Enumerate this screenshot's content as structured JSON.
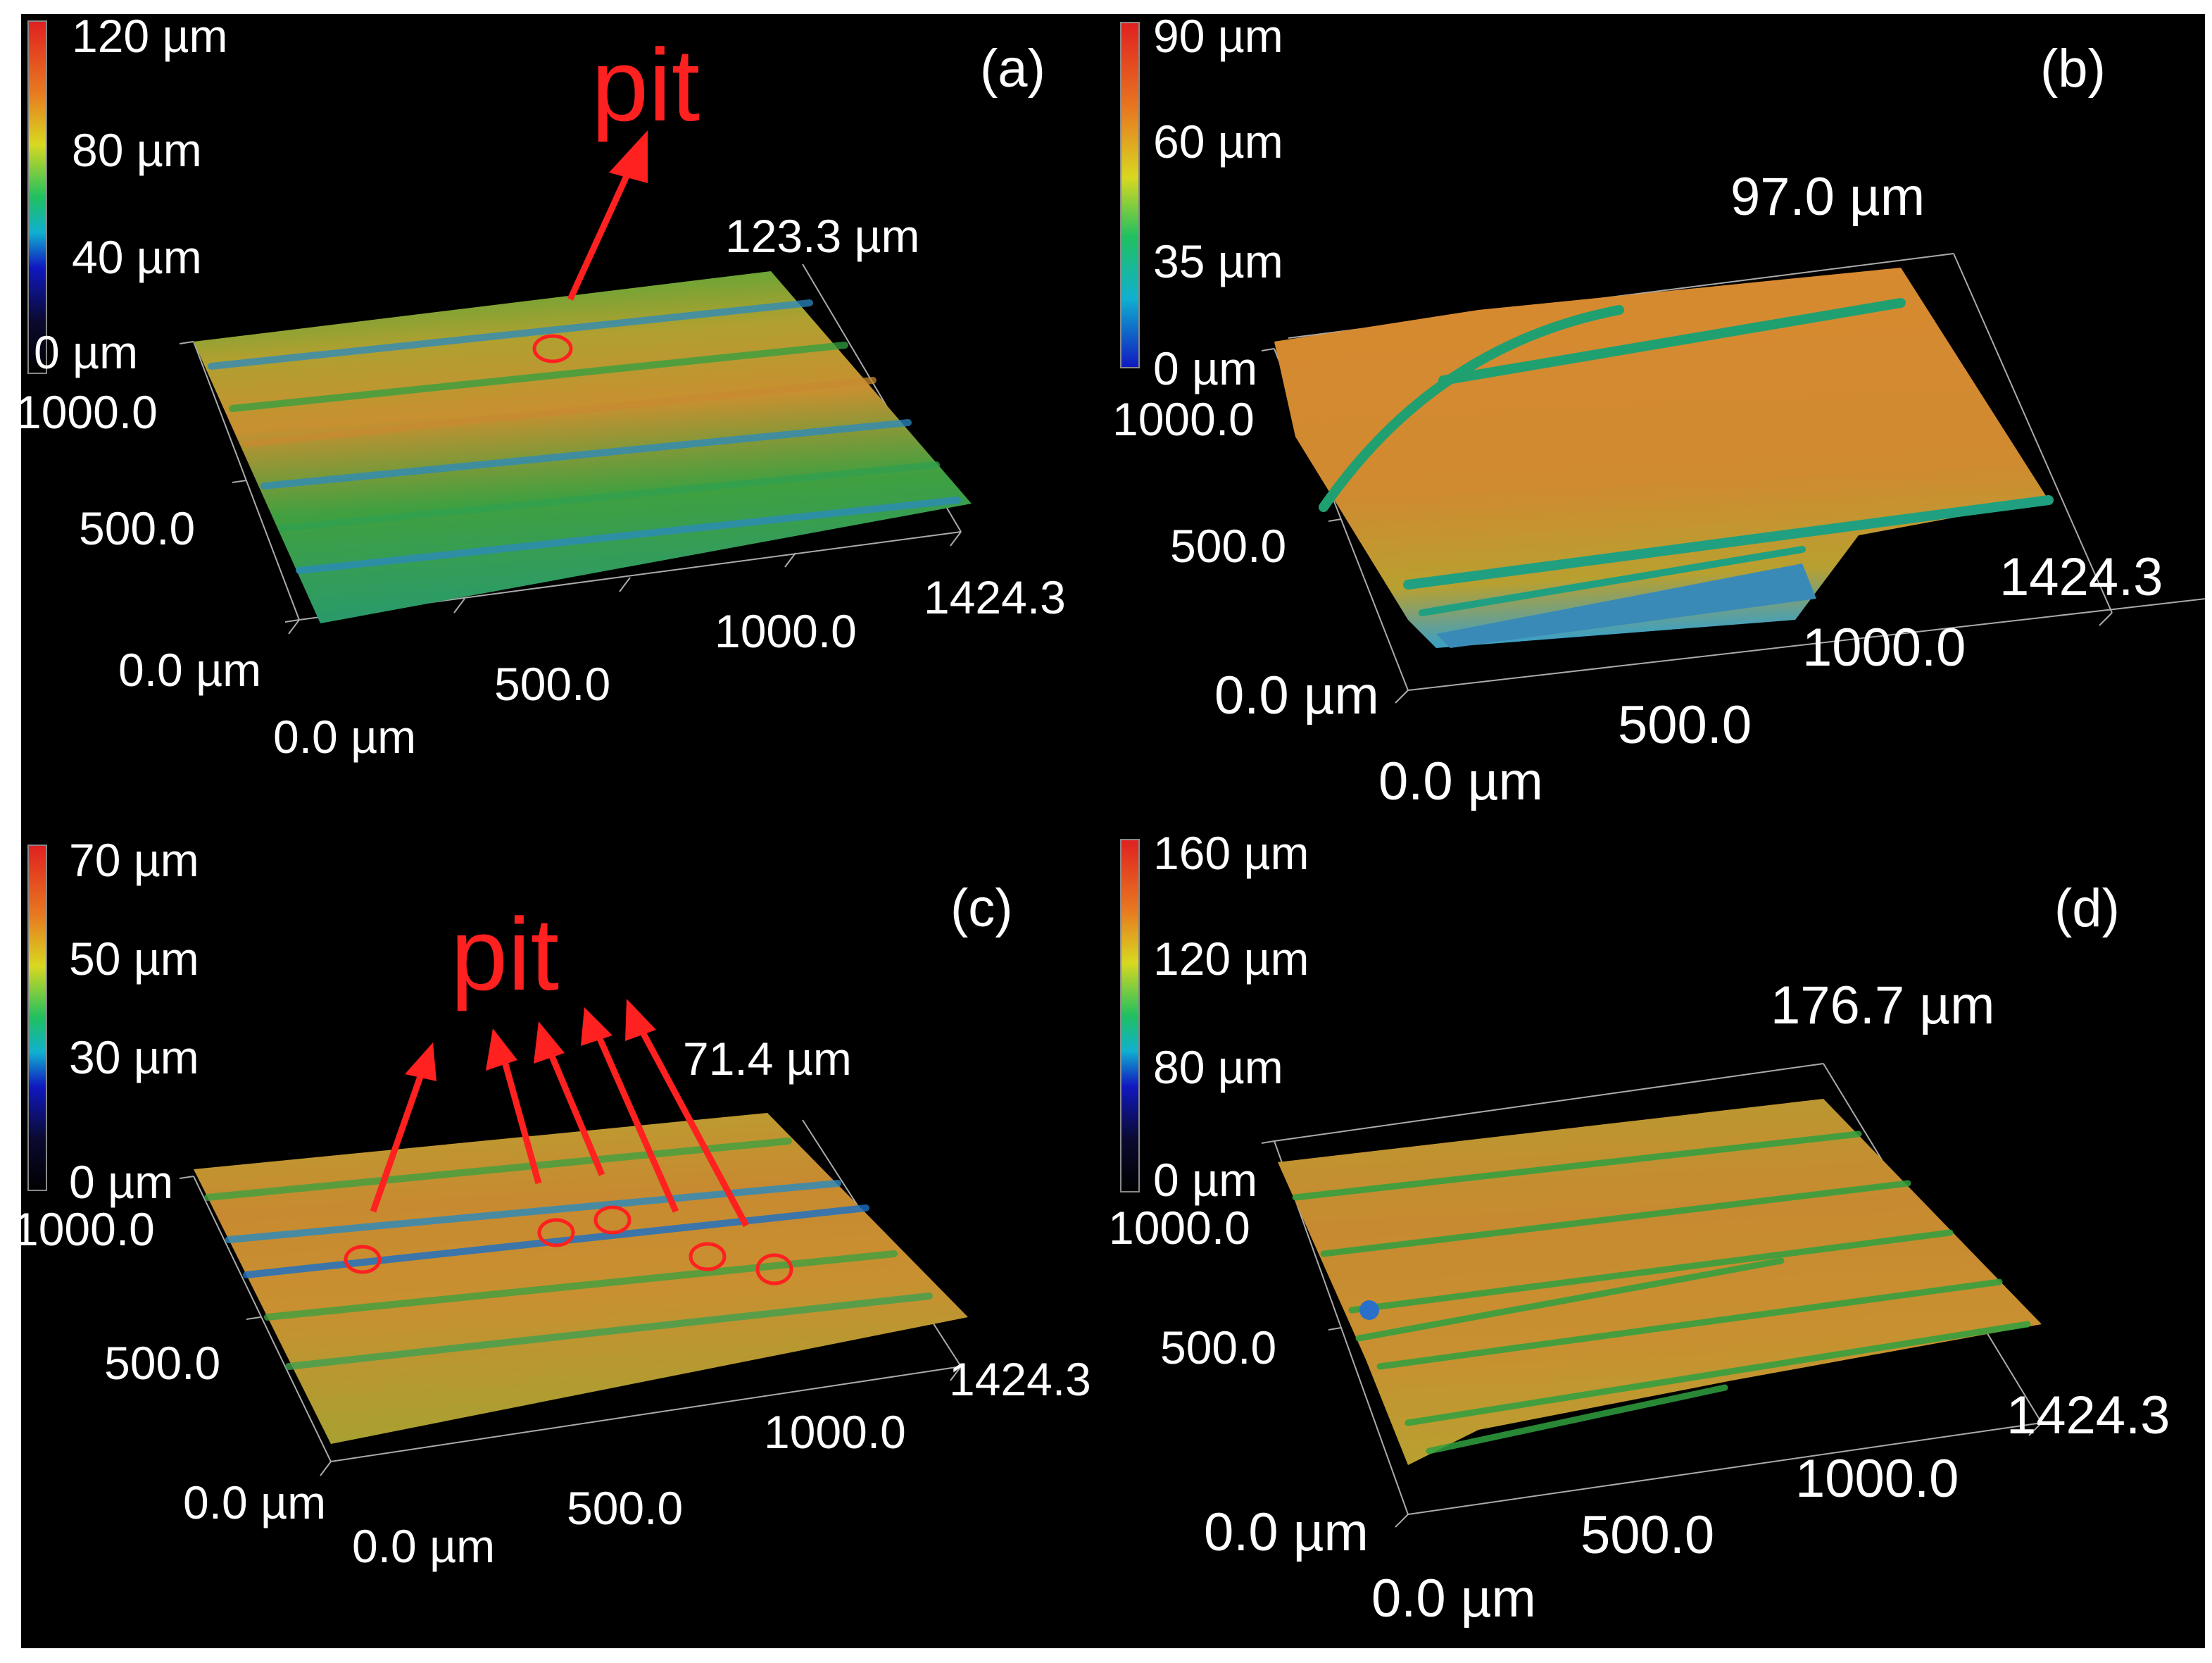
{
  "colors": {
    "annotation": "#ff2020",
    "colormap": [
      "#1018c0",
      "#10b0d0",
      "#20c060",
      "#d8d820",
      "#e87820",
      "#e02020"
    ]
  },
  "panels": [
    {
      "label": "(a)",
      "colorbar": [
        "120 µm",
        "80 µm",
        "40 µm",
        "0 µm"
      ],
      "max_height": "123.3 µm",
      "y_ticks": [
        "1000.0",
        "500.0",
        "0.0 µm"
      ],
      "x_ticks": [
        "0.0 µm",
        "500.0",
        "1000.0",
        "1424.3"
      ],
      "annotation": "pit",
      "pit_count": 1
    },
    {
      "label": "(b)",
      "colorbar": [
        "90 µm",
        "60 µm",
        "35 µm",
        "0 µm"
      ],
      "max_height": "97.0 µm",
      "y_ticks": [
        "1000.0",
        "500.0",
        "0.0 µm"
      ],
      "x_ticks": [
        "0.0 µm",
        "500.0",
        "1000.0",
        "1424.3"
      ]
    },
    {
      "label": "(c)",
      "colorbar": [
        "70 µm",
        "50 µm",
        "30 µm",
        "0 µm"
      ],
      "max_height": "71.4 µm",
      "y_ticks": [
        "1000.0",
        "500.0",
        "0.0 µm"
      ],
      "x_ticks": [
        "0.0 µm",
        "500.0",
        "1000.0",
        "1424.3"
      ],
      "annotation": "pit",
      "pit_count": 5
    },
    {
      "label": "(d)",
      "colorbar": [
        "160 µm",
        "120 µm",
        "80 µm",
        "0 µm"
      ],
      "max_height": "176.7 µm",
      "y_ticks": [
        "1000.0",
        "500.0",
        "0.0 µm"
      ],
      "x_ticks": [
        "0.0 µm",
        "500.0",
        "1000.0",
        "1424.3"
      ]
    }
  ]
}
